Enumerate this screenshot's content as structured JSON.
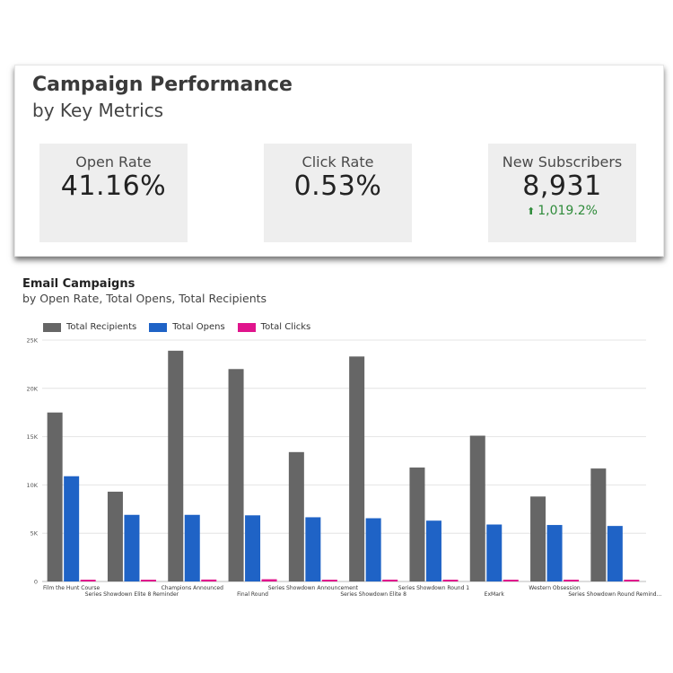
{
  "summary": {
    "title": "Campaign Performance",
    "subtitle": "by Key Metrics",
    "kpis": [
      {
        "label": "Open Rate",
        "value": "41.16%",
        "delta": ""
      },
      {
        "label": "Click Rate",
        "value": "0.53%",
        "delta": ""
      },
      {
        "label": "New Subscribers",
        "value": "8,931",
        "delta": "1,019.2%",
        "delta_color": "#2e8b3a",
        "delta_icon": "arrow-up-icon"
      }
    ]
  },
  "chart_data": {
    "type": "bar",
    "title": "Email Campaigns",
    "subtitle": "by Open Rate, Total Opens, Total Recipients",
    "categories": [
      "Film the Hunt Course",
      "Series Showdown Elite 8 Reminder",
      "Champions Announced",
      "Final Round",
      "Series Showdown Announcement",
      "Series Showdown Elite 8",
      "Series Showdown Round 1",
      "ExMark",
      "Western Obsession",
      "Series Showdown Round Remind..."
    ],
    "series": [
      {
        "name": "Total Recipients",
        "color": "#666666",
        "values": [
          17500,
          9300,
          23900,
          22000,
          13400,
          23300,
          11800,
          15100,
          8800,
          11700
        ]
      },
      {
        "name": "Total Opens",
        "color": "#1f63c6",
        "values": [
          10900,
          6900,
          6900,
          6850,
          6650,
          6550,
          6300,
          5900,
          5850,
          5750
        ]
      },
      {
        "name": "Total Clicks",
        "color": "#e0148c",
        "values": [
          60,
          180,
          200,
          230,
          140,
          190,
          120,
          60,
          50,
          120
        ]
      }
    ],
    "y_ticks": [
      "0",
      "5K",
      "10K",
      "15K",
      "20K",
      "25K"
    ],
    "ylim": [
      0,
      25000
    ],
    "grid": true,
    "legend_position": "top-left"
  }
}
